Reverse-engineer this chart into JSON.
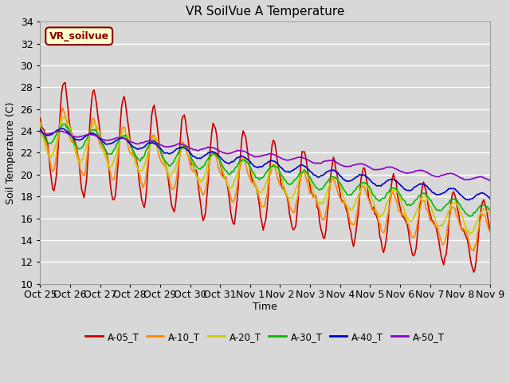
{
  "title": "VR SoilVue A Temperature",
  "xlabel": "Time",
  "ylabel": "Soil Temperature (C)",
  "ylim": [
    10,
    34
  ],
  "yticks": [
    10,
    12,
    14,
    16,
    18,
    20,
    22,
    24,
    26,
    28,
    30,
    32,
    34
  ],
  "background_color": "#d8d8d8",
  "plot_bg_color": "#d8d8d8",
  "grid_color": "white",
  "annotation_text": "VR_soilvue",
  "annotation_bg": "#ffffcc",
  "annotation_border": "#880000",
  "series_colors": {
    "A-05_T": "#cc0000",
    "A-10_T": "#ff8800",
    "A-20_T": "#cccc00",
    "A-30_T": "#00bb00",
    "A-40_T": "#0000cc",
    "A-50_T": "#8800cc"
  },
  "legend_colors": [
    "#cc0000",
    "#ff8800",
    "#cccc00",
    "#00bb00",
    "#0000cc",
    "#8800cc"
  ],
  "legend_labels": [
    "A-05_T",
    "A-10_T",
    "A-20_T",
    "A-30_T",
    "A-40_T",
    "A-50_T"
  ],
  "x_tick_labels": [
    "Oct 25",
    "Oct 26",
    "Oct 27",
    "Oct 28",
    "Oct 29",
    "Oct 30",
    "Oct 31",
    "Nov 1",
    "Nov 2",
    "Nov 3",
    "Nov 4",
    "Nov 5",
    "Nov 6",
    "Nov 7",
    "Nov 8",
    "Nov 9"
  ],
  "figwidth": 6.4,
  "figheight": 4.8,
  "dpi": 100
}
